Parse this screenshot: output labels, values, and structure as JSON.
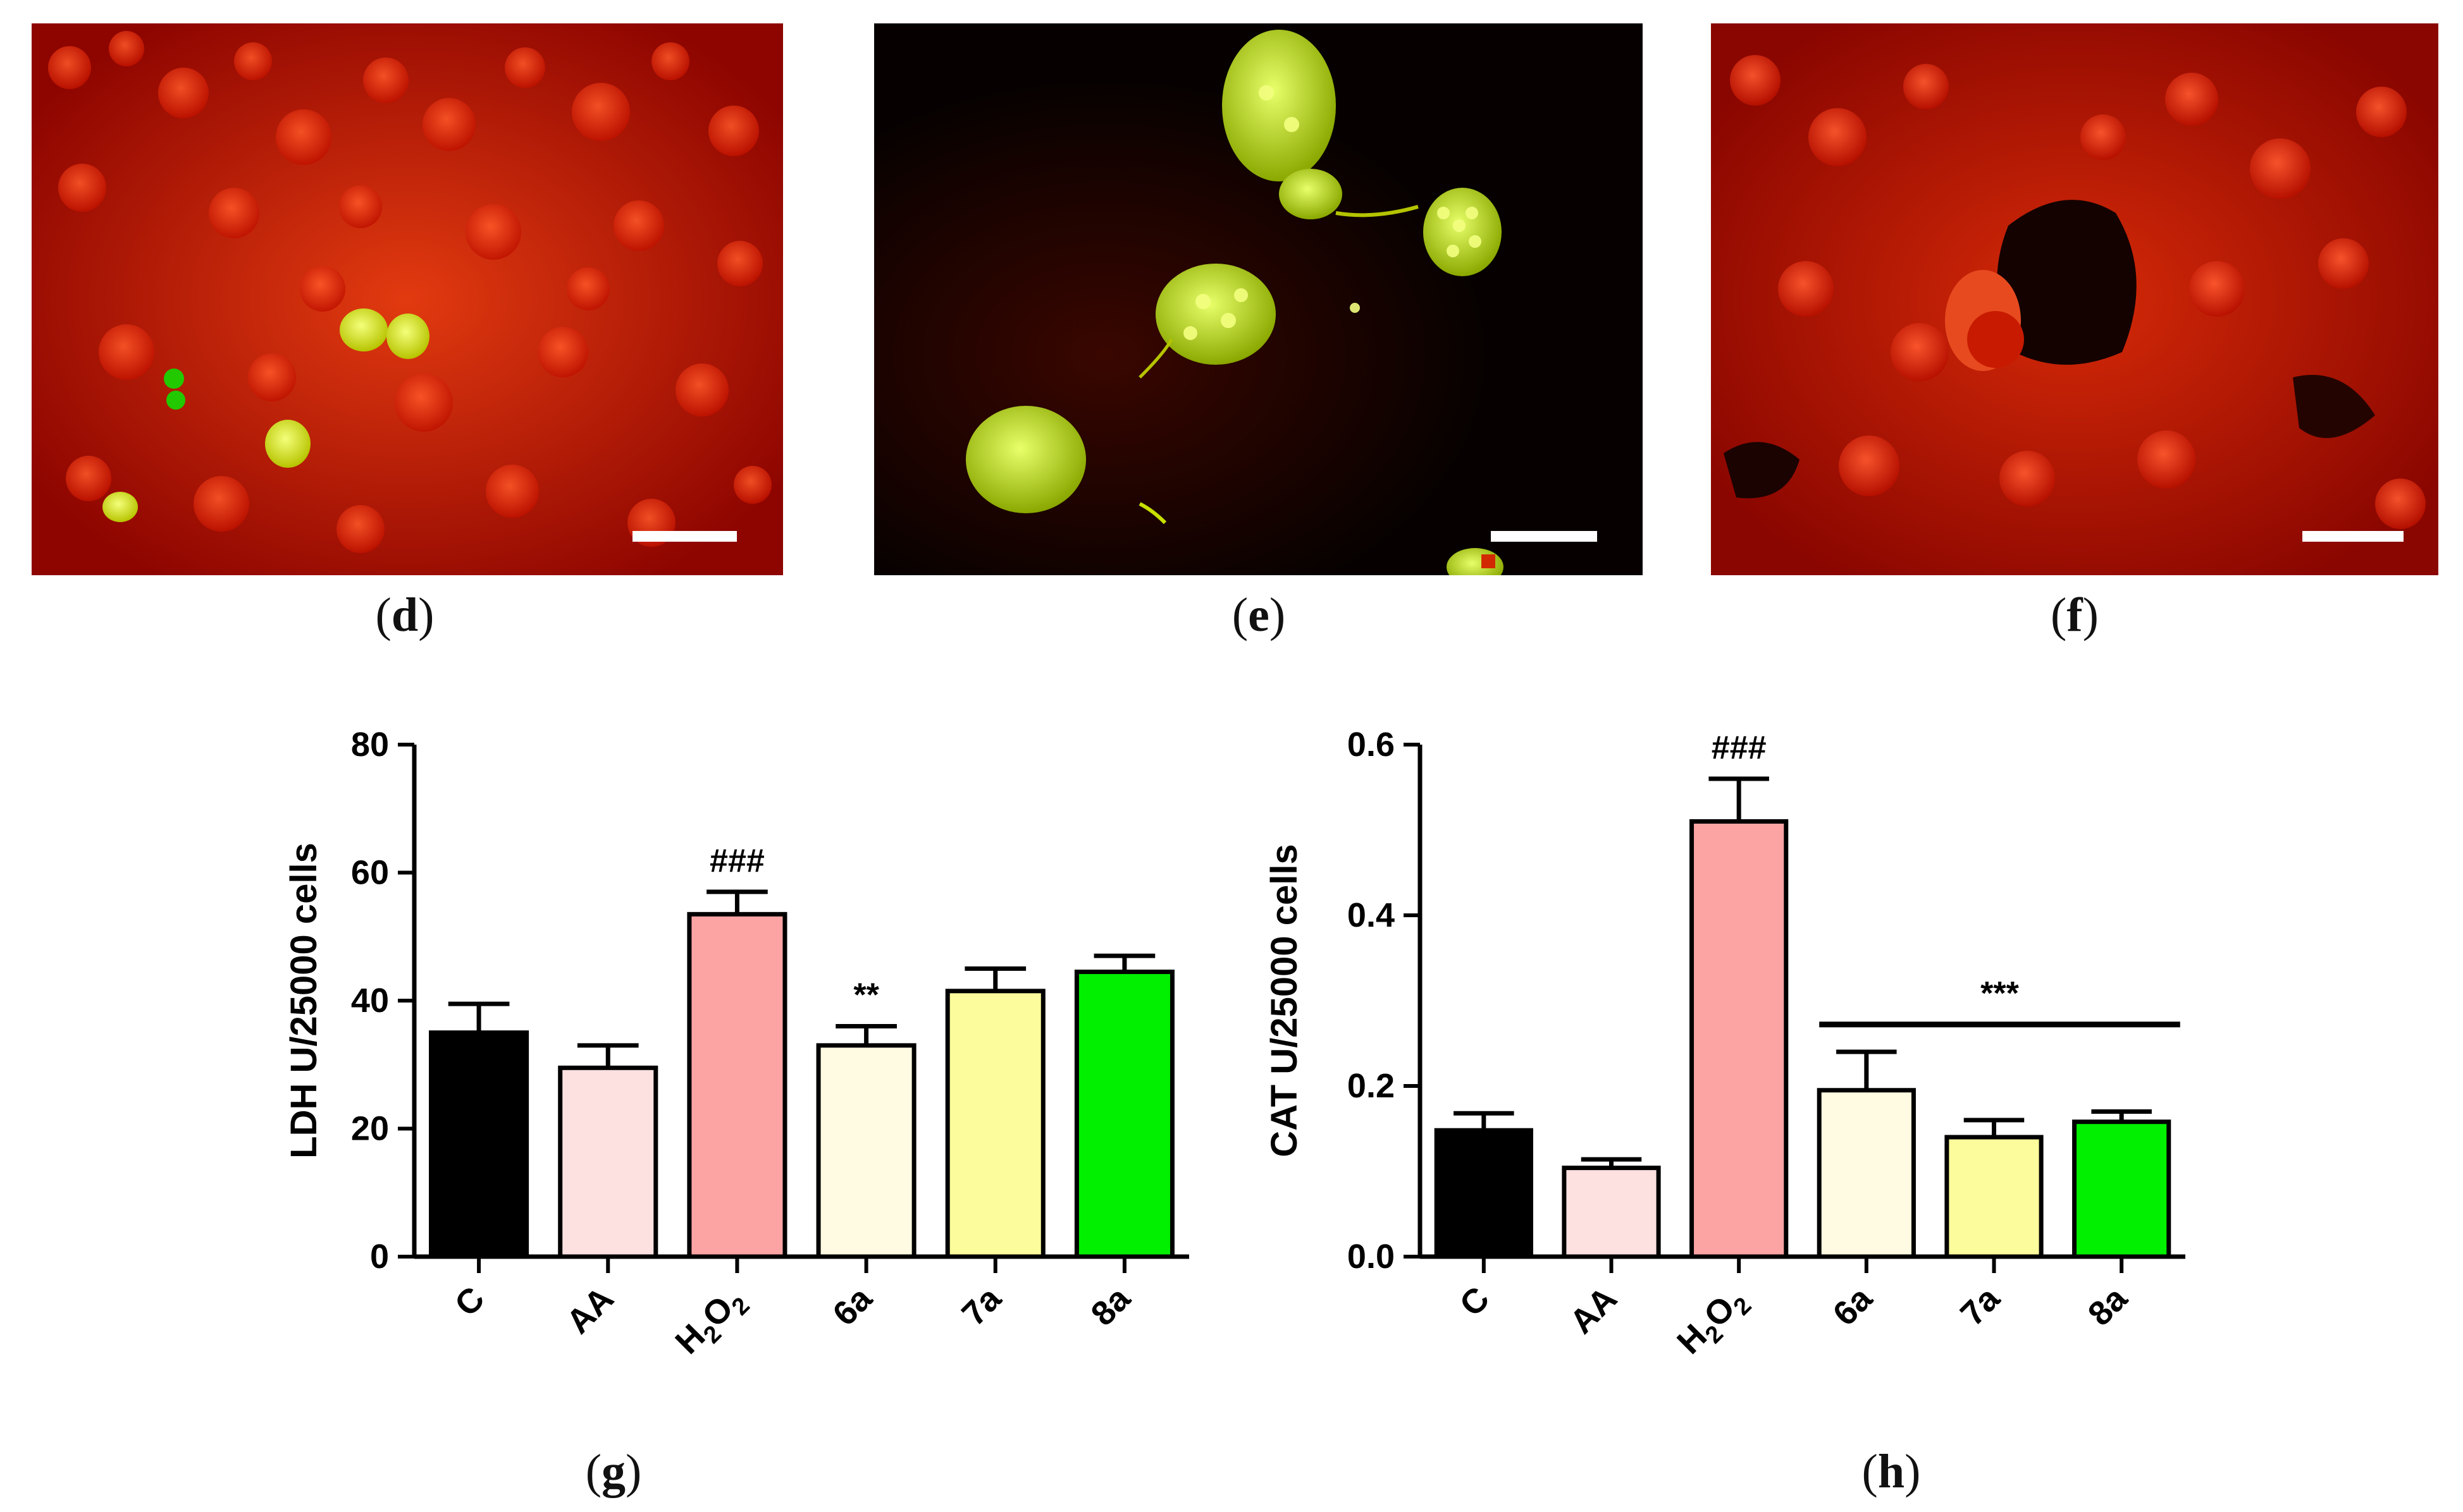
{
  "panels": {
    "d": "(d)",
    "e": "(e)",
    "f": "(f)",
    "g": "(g)",
    "h": "(h)"
  },
  "micrographs": [
    {
      "id": "d",
      "description_colors": {
        "background": "#b40a00",
        "highlight": "#e5f000"
      }
    },
    {
      "id": "e",
      "description_colors": {
        "background": "#050200",
        "highlight": "#c8e61e"
      }
    },
    {
      "id": "f",
      "description_colors": {
        "background": "#a90600",
        "highlight": "#ff3a1a"
      }
    }
  ],
  "colors": {
    "C": "#000000",
    "AA": "#fde0e0",
    "H2O2": "#fca4a4",
    "6a": "#fffbe2",
    "7a": "#fcfc9c",
    "8a": "#00f000"
  },
  "chart_data": [
    {
      "type": "bar",
      "panel": "(g)",
      "categories": [
        "C",
        "AA",
        "H2O2",
        "6a",
        "7a",
        "8a"
      ],
      "category_display": [
        {
          "base": "C"
        },
        {
          "base": "AA"
        },
        {
          "base": "H",
          "sub": "2",
          "base2": "O",
          "sub2": "2"
        },
        {
          "base": "6a"
        },
        {
          "base": "7a"
        },
        {
          "base": "8a"
        }
      ],
      "values": [
        35,
        29.5,
        53.5,
        33,
        41.5,
        44.5
      ],
      "errors": [
        4.5,
        3.5,
        3.5,
        3,
        3.5,
        2.5
      ],
      "annotations": [
        {
          "category": "H2O2",
          "text": "###"
        },
        {
          "category": "6a",
          "text": "**"
        }
      ],
      "ylabel": "LDH U/25000 cells",
      "ylim": [
        0,
        80
      ],
      "yticks": [
        0,
        20,
        40,
        60,
        80
      ],
      "grid": false
    },
    {
      "type": "bar",
      "panel": "(h)",
      "categories": [
        "C",
        "AA",
        "H2O2",
        "6a",
        "7a",
        "8a"
      ],
      "category_display": [
        {
          "base": "C"
        },
        {
          "base": "AA"
        },
        {
          "base": "H",
          "sub": "2",
          "base2": "O",
          "sub2": "2"
        },
        {
          "base": "6a"
        },
        {
          "base": "7a"
        },
        {
          "base": "8a"
        }
      ],
      "values": [
        0.148,
        0.104,
        0.51,
        0.195,
        0.14,
        0.158
      ],
      "errors": [
        0.02,
        0.01,
        0.05,
        0.045,
        0.02,
        0.012
      ],
      "annotations": [
        {
          "category": "H2O2",
          "text": "###"
        },
        {
          "category_span": [
            "6a",
            "8a"
          ],
          "text": "***"
        }
      ],
      "ylabel": "CAT U/25000 cells",
      "ylim": [
        0,
        0.6
      ],
      "yticks": [
        "0.0",
        "0.2",
        "0.4",
        "0.6"
      ],
      "grid": false
    }
  ]
}
